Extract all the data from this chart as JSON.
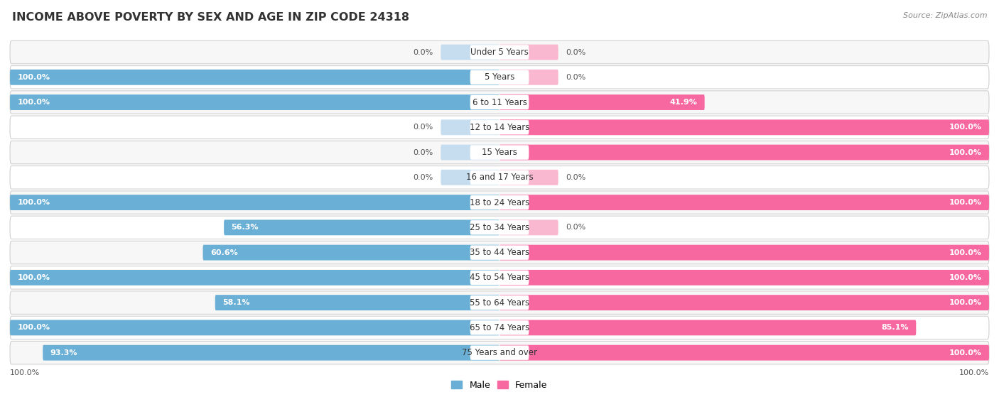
{
  "title": "INCOME ABOVE POVERTY BY SEX AND AGE IN ZIP CODE 24318",
  "source": "Source: ZipAtlas.com",
  "categories": [
    "Under 5 Years",
    "5 Years",
    "6 to 11 Years",
    "12 to 14 Years",
    "15 Years",
    "16 and 17 Years",
    "18 to 24 Years",
    "25 to 34 Years",
    "35 to 44 Years",
    "45 to 54 Years",
    "55 to 64 Years",
    "65 to 74 Years",
    "75 Years and over"
  ],
  "male_values": [
    0.0,
    100.0,
    100.0,
    0.0,
    0.0,
    0.0,
    100.0,
    56.3,
    60.6,
    100.0,
    58.1,
    100.0,
    93.3
  ],
  "female_values": [
    0.0,
    0.0,
    41.9,
    100.0,
    100.0,
    0.0,
    100.0,
    0.0,
    100.0,
    100.0,
    100.0,
    85.1,
    100.0
  ],
  "male_color": "#6aafd6",
  "female_color": "#f768a1",
  "male_color_light": "#c6dcef",
  "female_color_light": "#f9b8cf",
  "row_border_color": "#d0d0d0",
  "row_bg_even": "#f7f7f7",
  "row_bg_odd": "#ffffff",
  "label_bg_color": "#ffffff",
  "title_fontsize": 11.5,
  "label_fontsize": 8.5,
  "value_fontsize": 8.0,
  "source_fontsize": 8.0,
  "legend_fontsize": 9.0
}
